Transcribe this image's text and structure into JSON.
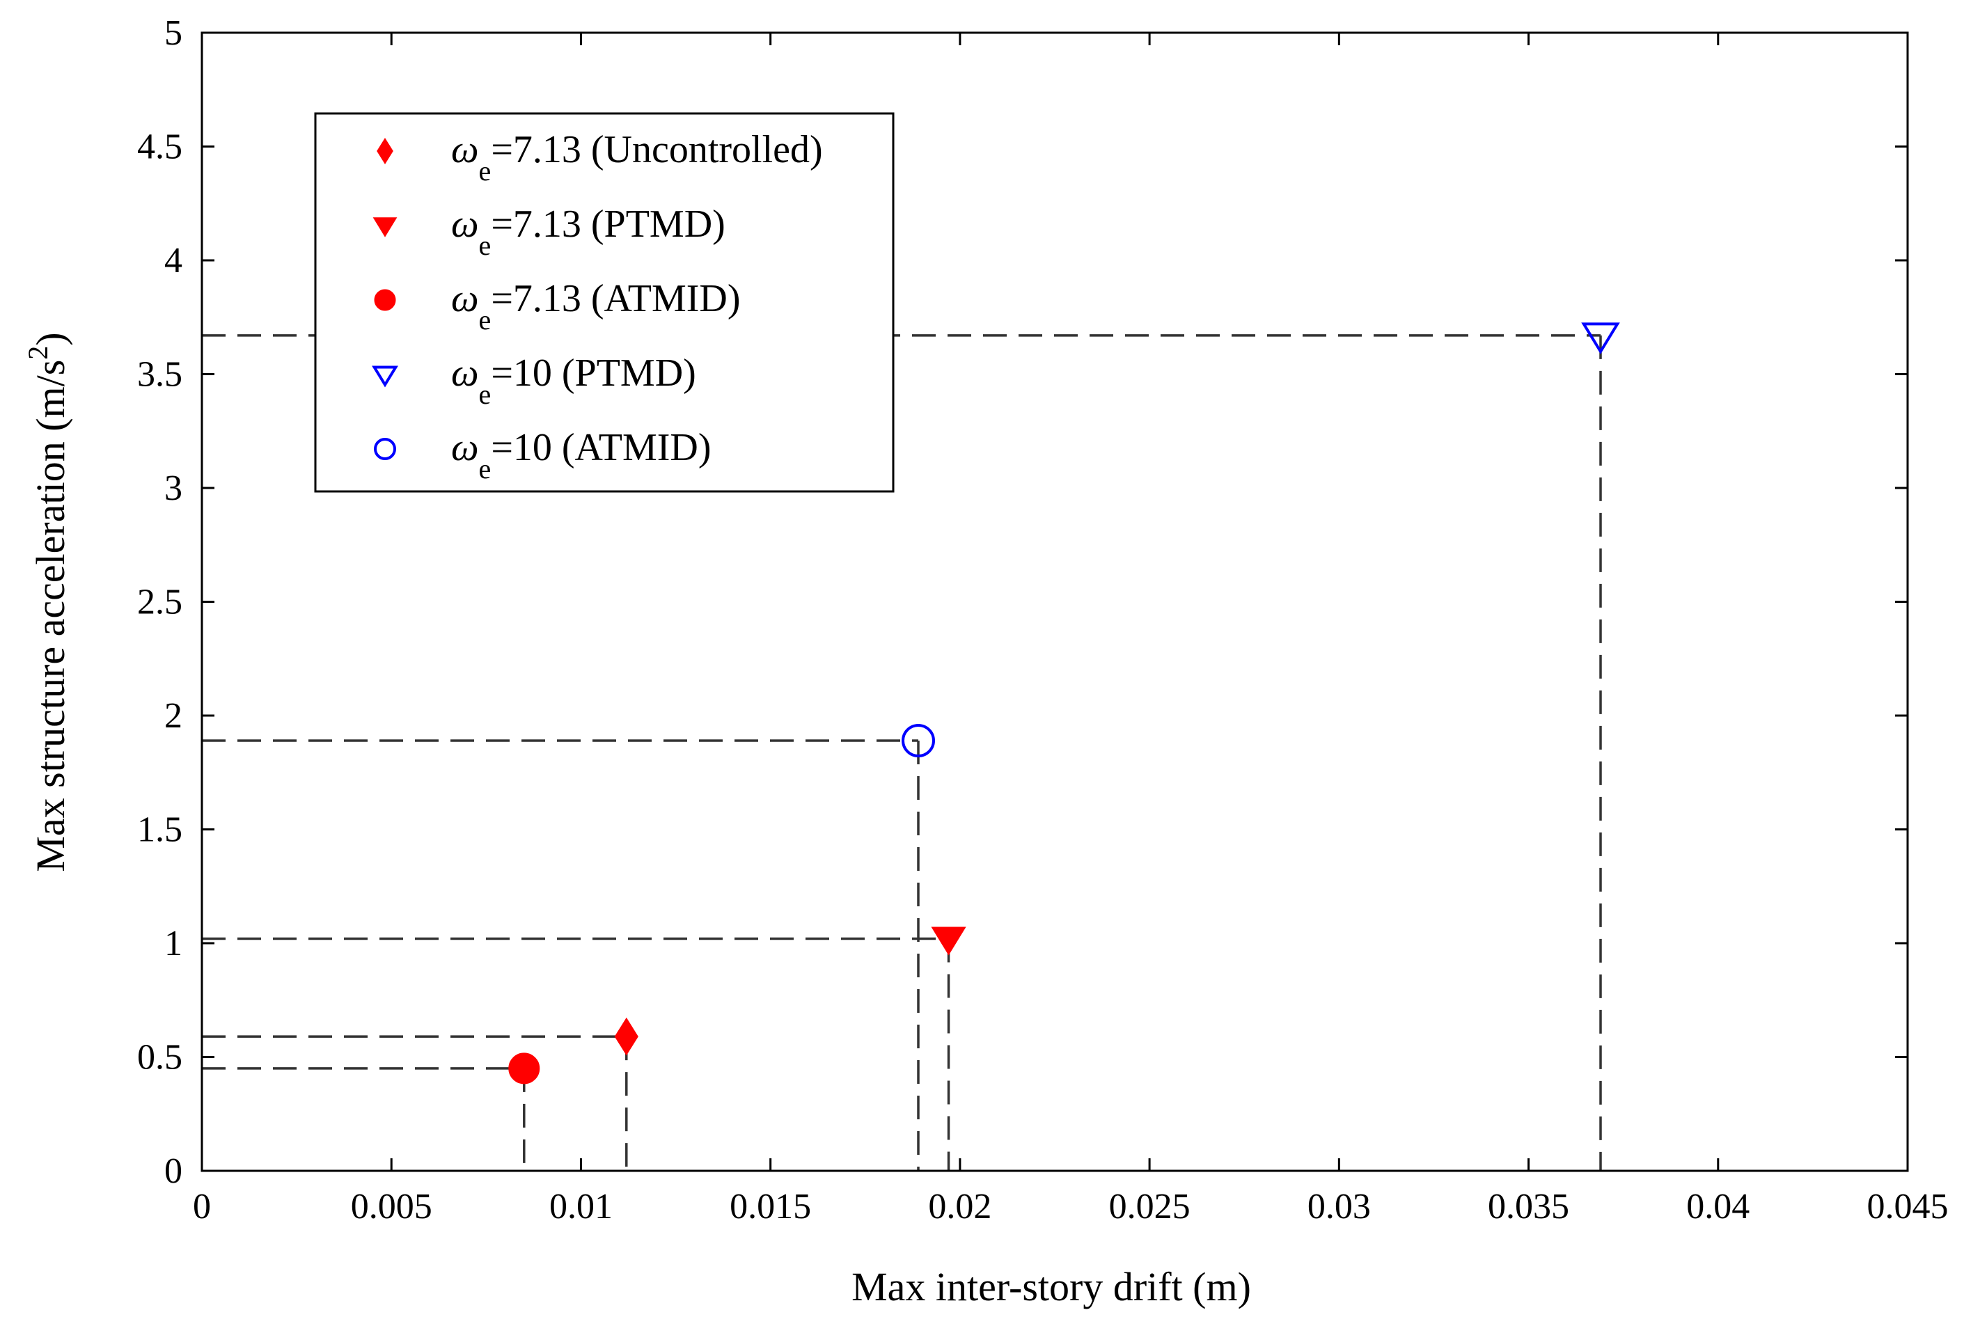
{
  "chart_data": {
    "type": "scatter",
    "xlabel": "Max inter-story drift (m)",
    "ylabel": "Max structure acceleration (m/s",
    "ylabel_sup": "2",
    "ylabel_tail": ")",
    "xlim": [
      0,
      0.045
    ],
    "ylim": [
      0,
      5
    ],
    "xticks": [
      0,
      0.005,
      0.01,
      0.015,
      0.02,
      0.025,
      0.03,
      0.035,
      0.04,
      0.045
    ],
    "xtick_labels": [
      "0",
      "0.005",
      "0.01",
      "0.015",
      "0.02",
      "0.025",
      "0.03",
      "0.035",
      "0.04",
      "0.045"
    ],
    "yticks": [
      0,
      0.5,
      1,
      1.5,
      2,
      2.5,
      3,
      3.5,
      4,
      4.5,
      5
    ],
    "ytick_labels": [
      "0",
      "0.5",
      "1",
      "1.5",
      "2",
      "2.5",
      "3",
      "3.5",
      "4",
      "4.5",
      "5"
    ],
    "grid": false,
    "legend_position": "top-left",
    "series": [
      {
        "key": "uncontrolled-713",
        "symbol": "ω",
        "subscript": "e",
        "label": "=7.13 (Uncontrolled)",
        "marker": "diamond",
        "filled": true,
        "color": "#ff0000",
        "x": 0.0112,
        "y": 0.59
      },
      {
        "key": "ptmd-713",
        "symbol": "ω",
        "subscript": "e",
        "label": "=7.13 (PTMD)",
        "marker": "triangle-down",
        "filled": true,
        "color": "#ff0000",
        "x": 0.0197,
        "y": 1.02
      },
      {
        "key": "atmid-713",
        "symbol": "ω",
        "subscript": "e",
        "label": "=7.13 (ATMID)",
        "marker": "circle",
        "filled": true,
        "color": "#ff0000",
        "x": 0.0085,
        "y": 0.45
      },
      {
        "key": "ptmd-10",
        "symbol": "ω",
        "subscript": "e",
        "label": "=10 (PTMD)",
        "marker": "triangle-down",
        "filled": false,
        "color": "#0000ff",
        "x": 0.0369,
        "y": 3.67
      },
      {
        "key": "atmid-10",
        "symbol": "ω",
        "subscript": "e",
        "label": "=10 (ATMID)",
        "marker": "circle",
        "filled": false,
        "color": "#0000ff",
        "x": 0.0189,
        "y": 1.89
      }
    ],
    "guide_line_color": "#333333"
  }
}
